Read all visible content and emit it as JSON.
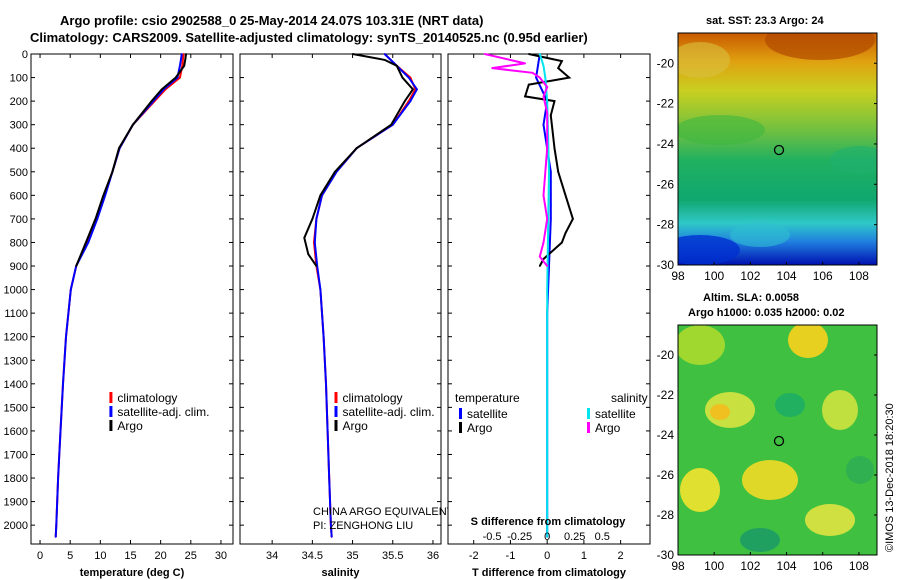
{
  "header": {
    "line1": "Argo profile: csio 2902588_0 25-May-2014 24.07S 103.31E (NRT data)",
    "line2": "Climatology: CARS2009. Satellite-adjusted climatology: synTS_20140525.nc (0.95d earlier)"
  },
  "colors": {
    "climatology": "#ff0000",
    "satellite": "#0000ff",
    "argo": "#000000",
    "sat_salinity": "#00e5ee",
    "argo_salinity": "#ff00ff"
  },
  "chart_data": [
    {
      "type": "line",
      "title": "",
      "xlabel": "temperature (deg C)",
      "ylabel": "",
      "xlim": [
        -1.5,
        32
      ],
      "ylim": [
        2080,
        0
      ],
      "xticks": [
        0,
        5,
        10,
        15,
        20,
        25,
        30
      ],
      "yticks": [
        0,
        100,
        200,
        300,
        400,
        500,
        600,
        700,
        800,
        900,
        1000,
        1100,
        1200,
        1300,
        1400,
        1500,
        1600,
        1700,
        1800,
        1900,
        2000
      ],
      "legend": [
        "climatology",
        "satellite-adj. clim.",
        "Argo"
      ],
      "series": [
        {
          "name": "climatology",
          "depth": [
            0,
            20,
            50,
            100,
            150,
            200,
            300,
            400,
            500,
            600,
            700,
            800,
            900,
            1000,
            1200,
            1400,
            1600,
            1800,
            2000,
            2050
          ],
          "values": [
            23.8,
            23.7,
            23.6,
            23.2,
            20.8,
            19,
            15.4,
            13.2,
            12,
            10.6,
            9.3,
            7.8,
            6.0,
            5.1,
            4.3,
            3.8,
            3.4,
            3.0,
            2.7,
            2.6
          ]
        },
        {
          "name": "satellite-adj. clim.",
          "depth": [
            0,
            20,
            50,
            100,
            150,
            200,
            300,
            400,
            500,
            600,
            700,
            800,
            900,
            1000,
            1200,
            1400,
            1600,
            1800,
            2000,
            2050
          ],
          "values": [
            23.5,
            23.4,
            23.2,
            22.8,
            20.5,
            18.8,
            15.4,
            13.2,
            12,
            10.8,
            9.5,
            8.0,
            6.0,
            5.1,
            4.3,
            3.8,
            3.4,
            3.0,
            2.7,
            2.6
          ]
        },
        {
          "name": "Argo",
          "depth": [
            0,
            20,
            50,
            100,
            150,
            200,
            300,
            400,
            500,
            600,
            700,
            800,
            900
          ],
          "values": [
            24.2,
            24.1,
            23.9,
            22.5,
            20.2,
            18.5,
            15.4,
            13.1,
            12.0,
            10.5,
            9.2,
            7.6,
            6.0
          ]
        }
      ]
    },
    {
      "type": "line",
      "title": "",
      "xlabel": "salinity",
      "ylabel": "",
      "xlim": [
        33.6,
        36.1
      ],
      "ylim": [
        2080,
        0
      ],
      "xticks": [
        34,
        34.5,
        35,
        35.5,
        36
      ],
      "legend": [
        "climatology",
        "satellite-adj. clim.",
        "Argo"
      ],
      "annotation_lines": [
        "CHINA ARGO EQUIVALENT",
        "PI: ZENGHONG LIU"
      ],
      "series": [
        {
          "name": "climatology",
          "depth": [
            0,
            50,
            100,
            150,
            200,
            300,
            400,
            500,
            600,
            700,
            800,
            900,
            1000,
            1200,
            1400,
            1600,
            1800,
            2000,
            2050
          ],
          "values": [
            35.4,
            35.55,
            35.72,
            35.78,
            35.7,
            35.5,
            35.05,
            34.8,
            34.62,
            34.55,
            34.52,
            34.55,
            34.6,
            34.64,
            34.67,
            34.69,
            34.71,
            34.73,
            34.74
          ]
        },
        {
          "name": "satellite-adj. clim.",
          "depth": [
            0,
            50,
            100,
            150,
            200,
            300,
            400,
            500,
            600,
            700,
            800,
            900,
            1000,
            1200,
            1400,
            1600,
            1800,
            2000,
            2050
          ],
          "values": [
            35.4,
            35.55,
            35.7,
            35.8,
            35.72,
            35.5,
            35.05,
            34.8,
            34.62,
            34.55,
            34.53,
            34.56,
            34.6,
            34.64,
            34.67,
            34.69,
            34.71,
            34.73,
            34.74
          ]
        },
        {
          "name": "Argo",
          "depth": [
            0,
            25,
            50,
            100,
            150,
            200,
            300,
            400,
            500,
            600,
            700,
            780,
            850,
            900
          ],
          "values": [
            35.0,
            35.4,
            35.55,
            35.62,
            35.75,
            35.65,
            35.48,
            35.05,
            34.78,
            34.6,
            34.5,
            34.4,
            34.45,
            34.55
          ]
        }
      ]
    },
    {
      "type": "line",
      "title": "",
      "xlabel": "T difference from climatology",
      "xlabel_top": "S difference from climatology",
      "xlim": [
        -2.7,
        2.8
      ],
      "ylim": [
        2080,
        0
      ],
      "xticks": [
        -2,
        -1,
        0,
        1,
        2
      ],
      "top_ticks": [
        "-0.5",
        "-0.25",
        "0",
        "0.25",
        "0.5"
      ],
      "legend_left": {
        "heading": "temperature",
        "items": [
          "satellite",
          "Argo"
        ]
      },
      "legend_right": {
        "heading": "salinity",
        "items": [
          "satellite",
          "Argo"
        ]
      },
      "series": [
        {
          "name": "temperature satellite",
          "depth": [
            0,
            100,
            200,
            300,
            500,
            700,
            900,
            1100,
            1500,
            2050
          ],
          "values": [
            -0.2,
            -0.3,
            0,
            -0.1,
            0.1,
            0.1,
            0.05,
            0,
            0,
            0
          ]
        },
        {
          "name": "temperature Argo",
          "depth": [
            0,
            30,
            60,
            100,
            130,
            180,
            200,
            260,
            400,
            500,
            600,
            700,
            760,
            800,
            870,
            900
          ],
          "values": [
            -0.5,
            0.4,
            0.3,
            0.6,
            -0.5,
            -0.6,
            0.2,
            0.1,
            0.2,
            0.3,
            0.5,
            0.7,
            0.5,
            0.4,
            -0.1,
            -0.2
          ]
        },
        {
          "name": "salinity satellite",
          "depth": [
            0,
            50,
            100,
            200,
            500,
            1000,
            1500,
            2050
          ],
          "values": [
            -0.2,
            -0.1,
            -0.05,
            0,
            0.05,
            0,
            0,
            0
          ]
        },
        {
          "name": "salinity Argo",
          "depth": [
            0,
            40,
            60,
            80,
            100,
            140,
            180,
            250,
            400,
            600,
            700,
            800,
            860,
            900
          ],
          "values": [
            -1.7,
            -0.6,
            -1.5,
            -0.4,
            -0.2,
            0,
            -0.1,
            0,
            0,
            -0.1,
            0,
            -0.1,
            -0.2,
            0
          ]
        }
      ]
    },
    {
      "type": "heatmap",
      "title": "sat. SST: 23.3 Argo: 24",
      "xticks": [
        "98",
        "100",
        "102",
        "104",
        "106",
        "108"
      ],
      "yticks": [
        "-20",
        "-22",
        "-24",
        "-26",
        "-28",
        "-30"
      ],
      "xlim": [
        98,
        109
      ],
      "ylim": [
        -30,
        -18.5
      ],
      "marker": {
        "lon": 103.31,
        "lat": -24.07
      }
    },
    {
      "type": "heatmap",
      "title_lines": [
        "Altim. SLA: 0.0058",
        "Argo h1000: 0.035 h2000: 0.02"
      ],
      "xticks": [
        "98",
        "100",
        "102",
        "104",
        "106",
        "108"
      ],
      "yticks": [
        "-20",
        "-22",
        "-24",
        "-26",
        "-28",
        "-30"
      ],
      "xlim": [
        98,
        109
      ],
      "ylim": [
        -30,
        -18.5
      ],
      "marker": {
        "lon": 103.31,
        "lat": -24.07
      }
    }
  ],
  "footer": {
    "credit": "©IMOS 13-Dec-2018 18:20:30"
  }
}
